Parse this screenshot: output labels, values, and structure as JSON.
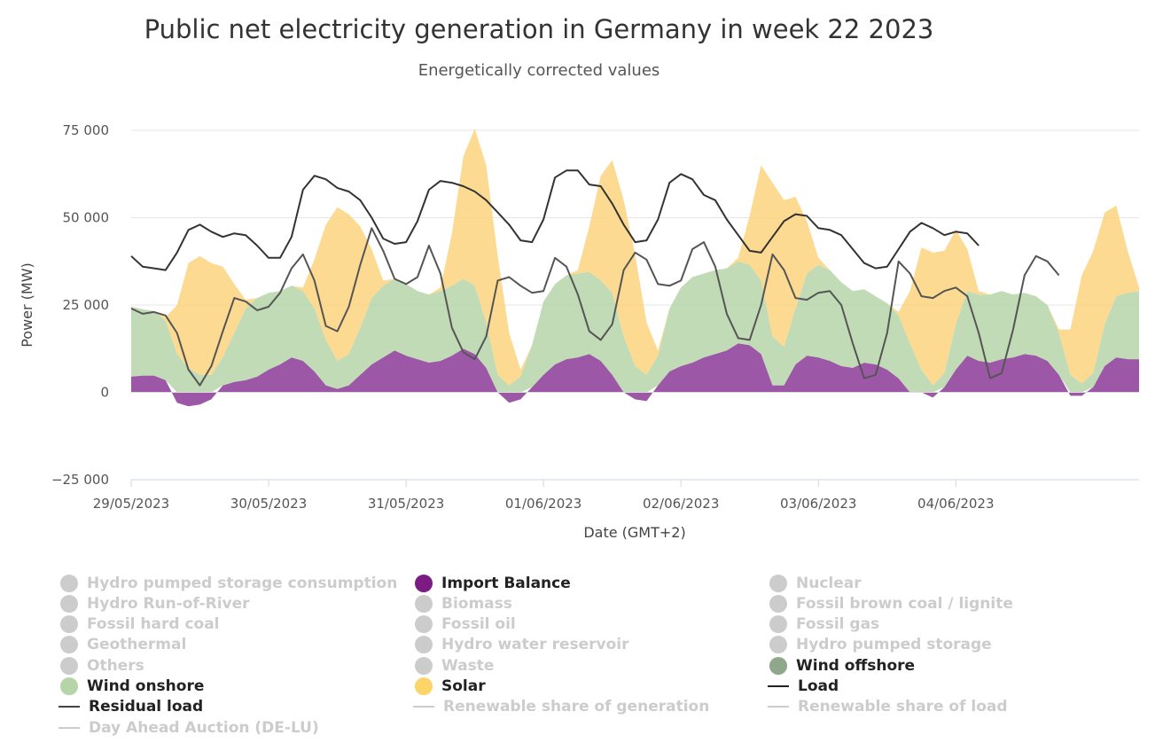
{
  "chart_data": {
    "type": "area",
    "title": "Public net electricity generation in Germany in week 22 2023",
    "subtitle": "Energetically corrected values",
    "xlabel": "Date (GMT+2)",
    "ylabel": "Power (MW)",
    "ylim": [
      -25000,
      75000
    ],
    "yticks": [
      -25000,
      0,
      25000,
      50000,
      75000
    ],
    "ytick_labels": [
      "−25 000",
      "0",
      "25 000",
      "50 000",
      "75 000"
    ],
    "xlim": [
      "29/05/2023 00:00",
      "04/06/2023 20:00"
    ],
    "xtick_labels": [
      "29/05/2023",
      "30/05/2023",
      "31/05/2023",
      "01/06/2023",
      "02/06/2023",
      "03/06/2023",
      "04/06/2023"
    ],
    "grid": true,
    "legend_position": "bottom",
    "sample_interval": "2h",
    "series": [
      {
        "name": "Import Balance",
        "kind": "area",
        "color": "#8b3a96",
        "values": [
          4500,
          4800,
          4800,
          3500,
          -3000,
          -4000,
          -3500,
          -2000,
          2000,
          3000,
          3500,
          4500,
          6500,
          8000,
          10000,
          9000,
          6000,
          2000,
          1000,
          2000,
          5000,
          8000,
          10000,
          12000,
          10500,
          9500,
          8500,
          9000,
          10500,
          12500,
          11000,
          7000,
          0,
          -3000,
          -2000,
          1500,
          5000,
          8000,
          9500,
          10000,
          11000,
          9000,
          5000,
          0,
          -2000,
          -2500,
          2000,
          6000,
          7500,
          8500,
          10000,
          11000,
          12000,
          14000,
          13500,
          11000,
          2000,
          2000,
          8000,
          10500,
          10000,
          9000,
          7500,
          7000,
          8500,
          8000,
          6500,
          4000,
          0,
          0,
          -1500,
          1500,
          6500,
          10500,
          9000,
          8500,
          9500,
          10000,
          11000,
          10500,
          9000,
          5000,
          -1000,
          -1000,
          1500,
          7500,
          10000,
          9500,
          9500
        ]
      },
      {
        "name": "Wind onshore",
        "kind": "area",
        "color": "#b5d5a8",
        "values": [
          20000,
          19000,
          18500,
          17000,
          11000,
          7000,
          5000,
          5000,
          8000,
          14000,
          20500,
          22500,
          22000,
          21000,
          20500,
          20000,
          18000,
          13000,
          8000,
          9000,
          13500,
          19000,
          20500,
          20500,
          20500,
          19500,
          19500,
          20000,
          20000,
          20000,
          19500,
          13000,
          5000,
          2000,
          4500,
          12000,
          21000,
          23000,
          24000,
          24000,
          23500,
          23000,
          23500,
          16000,
          7500,
          5000,
          8500,
          18000,
          22500,
          24500,
          24000,
          24000,
          23500,
          23500,
          23000,
          21000,
          14000,
          11000,
          16000,
          23500,
          26500,
          26000,
          24000,
          22000,
          21000,
          19500,
          19000,
          18000,
          14000,
          6500,
          2000,
          4000,
          13000,
          18500,
          19000,
          19500,
          19500,
          18000,
          17500,
          17000,
          16000,
          12000,
          5000,
          2500,
          4000,
          12000,
          17500,
          19000,
          19500
        ]
      },
      {
        "name": "Solar",
        "kind": "area",
        "color": "#fcd47f",
        "values": [
          0,
          0,
          0,
          1000,
          14000,
          30000,
          34000,
          32000,
          26000,
          14000,
          2500,
          0,
          0,
          0,
          0,
          1000,
          14000,
          33000,
          44000,
          40000,
          29000,
          14000,
          1500,
          0,
          0,
          0,
          0,
          1000,
          15000,
          35000,
          45000,
          45000,
          34000,
          15000,
          2000,
          0,
          0,
          0,
          0,
          1000,
          13000,
          30000,
          38000,
          39000,
          32000,
          15000,
          1500,
          0,
          0,
          0,
          0,
          0,
          0,
          1000,
          14000,
          33000,
          44000,
          42000,
          32000,
          15000,
          2000,
          0,
          0,
          0,
          0,
          0,
          0,
          1000,
          15000,
          35000,
          38000,
          35000,
          27000,
          12000,
          1000,
          0,
          0,
          0,
          0,
          0,
          0,
          1000,
          13000,
          31000,
          35000,
          32000,
          26000,
          12000,
          1000
        ]
      },
      {
        "name": "Load",
        "kind": "line",
        "color": "#333333",
        "values": [
          39000,
          36000,
          35500,
          35000,
          40000,
          46500,
          48000,
          46000,
          44500,
          45500,
          45000,
          42000,
          38500,
          38500,
          44500,
          58000,
          62000,
          61000,
          58500,
          57500,
          55000,
          50000,
          44000,
          42500,
          43000,
          49000,
          58000,
          60500,
          60000,
          59000,
          57500,
          55000,
          51500,
          48000,
          43500,
          43000,
          49500,
          61500,
          63500,
          63500,
          59500,
          59000,
          54000,
          48000,
          43000,
          43500,
          49500,
          60000,
          62500,
          61000,
          56500,
          55000,
          49500,
          45000,
          40500,
          40000,
          44500,
          49000,
          51000,
          50500,
          47000,
          46500,
          45000,
          41000,
          37000,
          35500,
          36000,
          41000,
          46000,
          48500,
          47000,
          45000,
          46000,
          45500,
          42000
        ]
      },
      {
        "name": "Residual load",
        "kind": "line",
        "color": "#555555",
        "values": [
          24000,
          22500,
          23000,
          22000,
          17000,
          6500,
          2000,
          7500,
          17500,
          27000,
          26000,
          23500,
          24500,
          28500,
          35500,
          39500,
          32000,
          19000,
          17500,
          24500,
          36500,
          47000,
          40500,
          32500,
          31000,
          33000,
          42000,
          34000,
          18500,
          11500,
          9500,
          16000,
          32000,
          33000,
          30500,
          28500,
          29000,
          38500,
          36000,
          28000,
          17500,
          15000,
          19500,
          35000,
          40000,
          38000,
          31000,
          30500,
          32000,
          41000,
          43000,
          36000,
          22500,
          15500,
          15000,
          25000,
          39500,
          35000,
          27000,
          26500,
          28500,
          29000,
          25000,
          14000,
          4000,
          5000,
          17000,
          37500,
          34000,
          27500,
          27000,
          29000,
          30000,
          27500,
          17000,
          4000,
          5500,
          18000,
          33500,
          39000,
          37500,
          33500
        ]
      }
    ]
  },
  "legend": {
    "items": [
      {
        "label": "Hydro pumped storage consumption",
        "symbol": "dot",
        "color": "#cccccc",
        "visible": false,
        "col": 0,
        "row": 0
      },
      {
        "label": "Import Balance",
        "symbol": "dot",
        "color": "#7b1b83",
        "visible": true,
        "col": 1,
        "row": 0
      },
      {
        "label": "Nuclear",
        "symbol": "dot",
        "color": "#cccccc",
        "visible": false,
        "col": 2,
        "row": 0
      },
      {
        "label": "Hydro Run-of-River",
        "symbol": "dot",
        "color": "#cccccc",
        "visible": false,
        "col": 0,
        "row": 1
      },
      {
        "label": "Biomass",
        "symbol": "dot",
        "color": "#cccccc",
        "visible": false,
        "col": 1,
        "row": 1
      },
      {
        "label": "Fossil brown coal / lignite",
        "symbol": "dot",
        "color": "#cccccc",
        "visible": false,
        "col": 2,
        "row": 1
      },
      {
        "label": "Fossil hard coal",
        "symbol": "dot",
        "color": "#cccccc",
        "visible": false,
        "col": 0,
        "row": 2
      },
      {
        "label": "Fossil oil",
        "symbol": "dot",
        "color": "#cccccc",
        "visible": false,
        "col": 1,
        "row": 2
      },
      {
        "label": "Fossil gas",
        "symbol": "dot",
        "color": "#cccccc",
        "visible": false,
        "col": 2,
        "row": 2
      },
      {
        "label": "Geothermal",
        "symbol": "dot",
        "color": "#cccccc",
        "visible": false,
        "col": 0,
        "row": 3
      },
      {
        "label": "Hydro water reservoir",
        "symbol": "dot",
        "color": "#cccccc",
        "visible": false,
        "col": 1,
        "row": 3
      },
      {
        "label": "Hydro pumped storage",
        "symbol": "dot",
        "color": "#cccccc",
        "visible": false,
        "col": 2,
        "row": 3
      },
      {
        "label": "Others",
        "symbol": "dot",
        "color": "#cccccc",
        "visible": false,
        "col": 0,
        "row": 4
      },
      {
        "label": "Waste",
        "symbol": "dot",
        "color": "#cccccc",
        "visible": false,
        "col": 1,
        "row": 4
      },
      {
        "label": "Wind offshore",
        "symbol": "dot",
        "color": "#8fa88b",
        "visible": true,
        "col": 2,
        "row": 4
      },
      {
        "label": "Wind onshore",
        "symbol": "dot",
        "color": "#b5d5a8",
        "visible": true,
        "col": 0,
        "row": 5
      },
      {
        "label": "Solar",
        "symbol": "dot",
        "color": "#fcd467",
        "visible": true,
        "col": 1,
        "row": 5
      },
      {
        "label": "Load",
        "symbol": "line",
        "color": "#222222",
        "visible": true,
        "col": 2,
        "row": 5
      },
      {
        "label": "Residual load",
        "symbol": "line",
        "color": "#444444",
        "visible": true,
        "col": 0,
        "row": 6
      },
      {
        "label": "Renewable share of generation",
        "symbol": "line",
        "color": "#cccccc",
        "visible": false,
        "col": 1,
        "row": 6
      },
      {
        "label": "Renewable share of load",
        "symbol": "line",
        "color": "#cccccc",
        "visible": false,
        "col": 2,
        "row": 6
      },
      {
        "label": "Day Ahead Auction (DE-LU)",
        "symbol": "line",
        "color": "#cccccc",
        "visible": false,
        "col": 0,
        "row": 7
      }
    ]
  }
}
